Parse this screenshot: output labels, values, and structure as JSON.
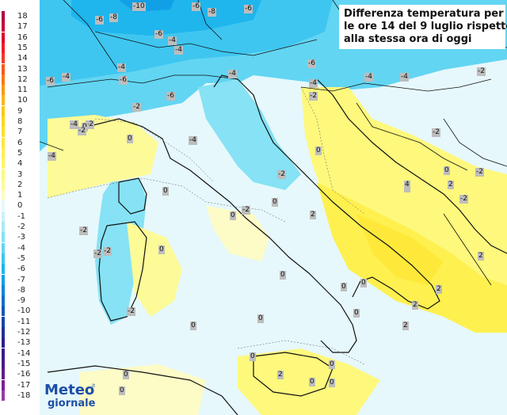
{
  "title": {
    "lines": [
      "Differenza temperatura per",
      "le ore 14 del 9 luglio rispetto",
      "alla stessa ora di oggi"
    ]
  },
  "legend": {
    "entries": [
      {
        "label": "18",
        "color": "#b00043"
      },
      {
        "label": "17",
        "color": "#c8003c"
      },
      {
        "label": "16",
        "color": "#dc0032"
      },
      {
        "label": "15",
        "color": "#ea1f2a"
      },
      {
        "label": "14",
        "color": "#f23a1f"
      },
      {
        "label": "13",
        "color": "#f55a1a"
      },
      {
        "label": "12",
        "color": "#f77a16"
      },
      {
        "label": "11",
        "color": "#f99a14"
      },
      {
        "label": "10",
        "color": "#fbb515"
      },
      {
        "label": "9",
        "color": "#fcc818"
      },
      {
        "label": "8",
        "color": "#fdd61f"
      },
      {
        "label": "7",
        "color": "#fee02a"
      },
      {
        "label": "6",
        "color": "#fee93a"
      },
      {
        "label": "5",
        "color": "#fef04f"
      },
      {
        "label": "4",
        "color": "#fef565"
      },
      {
        "label": "3",
        "color": "#fef87d"
      },
      {
        "label": "2",
        "color": "#fdfa98"
      },
      {
        "label": "1",
        "color": "#fdfbc6"
      },
      {
        "label": "0",
        "color": "#e6f8fb"
      },
      {
        "label": "-1",
        "color": "#c8f2f8"
      },
      {
        "label": "-2",
        "color": "#a8ebf6"
      },
      {
        "label": "-3",
        "color": "#86e2f4"
      },
      {
        "label": "-4",
        "color": "#62d5f2"
      },
      {
        "label": "-5",
        "color": "#3ec6f0"
      },
      {
        "label": "-6",
        "color": "#1fb5ed"
      },
      {
        "label": "-7",
        "color": "#11a0e6"
      },
      {
        "label": "-8",
        "color": "#0f88d8"
      },
      {
        "label": "-9",
        "color": "#1070c8"
      },
      {
        "label": "-10",
        "color": "#1658b8"
      },
      {
        "label": "-11",
        "color": "#1c44a8"
      },
      {
        "label": "-12",
        "color": "#22309a"
      },
      {
        "label": "-13",
        "color": "#2c208c"
      },
      {
        "label": "-14",
        "color": "#3a1a86"
      },
      {
        "label": "-15",
        "color": "#4c1a86"
      },
      {
        "label": "-16",
        "color": "#621c8c"
      },
      {
        "label": "-17",
        "color": "#7a2096"
      },
      {
        "label": "-18",
        "color": "#9a3aa8"
      }
    ]
  },
  "value_labels": [
    {
      "text": "-10"
    },
    {
      "text": "-6"
    },
    {
      "text": "-8"
    },
    {
      "text": "-6"
    },
    {
      "text": "-6"
    },
    {
      "text": "-8"
    },
    {
      "text": "-6"
    },
    {
      "text": "-4"
    },
    {
      "text": "-4"
    },
    {
      "text": "-4"
    },
    {
      "text": "-6"
    },
    {
      "text": "-4"
    },
    {
      "text": "-6"
    },
    {
      "text": "-6"
    },
    {
      "text": "-4"
    },
    {
      "text": "-6"
    },
    {
      "text": "-2"
    },
    {
      "text": "-2"
    },
    {
      "text": "-4"
    },
    {
      "text": "-4"
    },
    {
      "text": "-2"
    },
    {
      "text": "-4"
    },
    {
      "text": "-4"
    },
    {
      "text": "0"
    },
    {
      "text": "0"
    },
    {
      "text": "-4"
    },
    {
      "text": "0"
    },
    {
      "text": "-2"
    },
    {
      "text": "0"
    },
    {
      "text": "-2"
    },
    {
      "text": "0"
    },
    {
      "text": "0"
    },
    {
      "text": "2"
    },
    {
      "text": "2"
    },
    {
      "text": "4"
    },
    {
      "text": "2"
    },
    {
      "text": "-2"
    },
    {
      "text": "-2"
    },
    {
      "text": "0"
    },
    {
      "text": "0"
    },
    {
      "text": "0"
    },
    {
      "text": "2"
    },
    {
      "text": "2"
    },
    {
      "text": "0"
    },
    {
      "text": "0"
    },
    {
      "text": "-2"
    },
    {
      "text": "0"
    },
    {
      "text": "0"
    },
    {
      "text": "0"
    },
    {
      "text": "0"
    },
    {
      "text": "2"
    },
    {
      "text": "2"
    },
    {
      "text": "0"
    },
    {
      "text": "2"
    },
    {
      "text": "0"
    },
    {
      "text": "0"
    },
    {
      "text": "0"
    },
    {
      "text": "-2"
    },
    {
      "text": "0"
    },
    {
      "text": "-4"
    },
    {
      "text": "-2"
    },
    {
      "text": "-2"
    },
    {
      "text": "-2"
    },
    {
      "text": "-2"
    },
    {
      "text": "-2"
    }
  ],
  "logo": {
    "line1": "Meteo",
    "line2": "giornale",
    "small": "it"
  },
  "colors": {
    "sea": "#e6f8fb",
    "warm": "#fef565",
    "cold": "#1fb5ed",
    "border": "#111111"
  }
}
